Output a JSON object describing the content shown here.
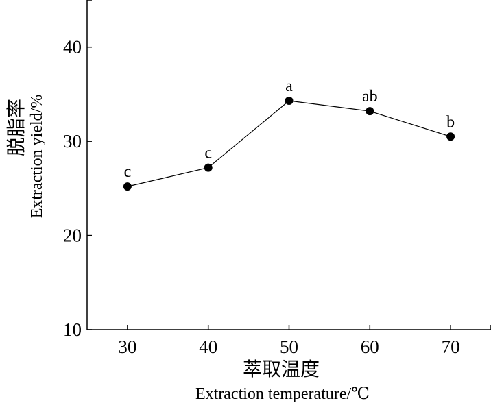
{
  "chart_data": {
    "type": "line",
    "title": "",
    "xlabel_cn": "萃取温度",
    "xlabel": "Extraction temperature/℃",
    "ylabel_cn": "脱脂率",
    "ylabel": "Extraction yield/%",
    "x": [
      30,
      40,
      50,
      60,
      70
    ],
    "xticks": [
      "30",
      "40",
      "50",
      "60",
      "70"
    ],
    "yticks": [
      "10",
      "20",
      "30",
      "40"
    ],
    "ytick_values": [
      10,
      20,
      30,
      40
    ],
    "xlim": [
      25,
      75
    ],
    "ylim": [
      10,
      45
    ],
    "grid": false,
    "series": [
      {
        "name": "Extraction yield",
        "values": [
          25.2,
          27.2,
          34.3,
          33.2,
          30.5
        ],
        "labels": [
          "c",
          "c",
          "a",
          "ab",
          "b"
        ],
        "color": "#000000"
      }
    ]
  }
}
